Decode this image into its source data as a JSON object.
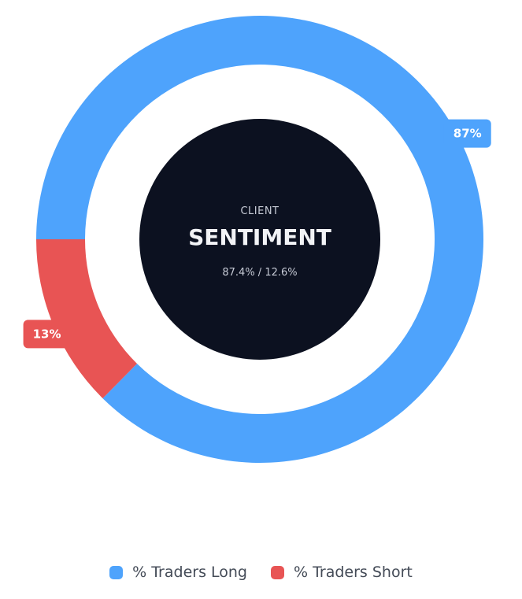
{
  "chart_data": {
    "type": "pie",
    "variant": "donut",
    "categories": [
      "% Traders Long",
      "% Traders Short"
    ],
    "values": [
      87.4,
      12.6
    ],
    "data_labels": [
      "87%",
      "13%"
    ],
    "colors": [
      "#4ea3fc",
      "#e85454"
    ],
    "center": {
      "eyebrow": "CLIENT",
      "title": "SENTIMENT",
      "subtitle": "87.4% / 12.6%"
    },
    "legend_position": "bottom"
  },
  "legend": {
    "items": [
      {
        "label": "% Traders Long",
        "color": "#4ea3fc"
      },
      {
        "label": "% Traders Short",
        "color": "#e85454"
      }
    ]
  }
}
